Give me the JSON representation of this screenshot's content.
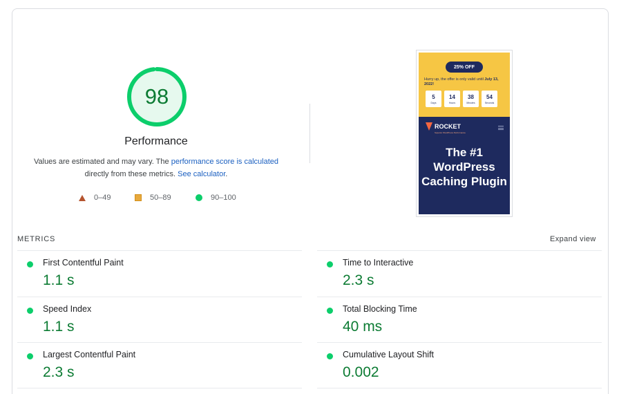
{
  "score": {
    "value": "98",
    "fraction": 0.98,
    "title": "Performance",
    "color": "#0cce6b"
  },
  "description": {
    "prefix": "Values are estimated and may vary. The ",
    "link1": "performance score is calculated",
    "middle": "directly from these metrics. ",
    "link2": "See calculator",
    "suffix": "."
  },
  "legend": [
    {
      "icon": "triangle-icon",
      "label": "0–49",
      "color": "#b5542e"
    },
    {
      "icon": "square-icon",
      "label": "50–89",
      "color": "#e8a93c"
    },
    {
      "icon": "circle-icon",
      "label": "90–100",
      "color": "#0cce6b"
    }
  ],
  "thumbnail": {
    "badge": "25% OFF",
    "offer_text": "Hurry up, the offer is only valid until ",
    "offer_date": "July 13, 2022!",
    "timer": [
      {
        "value": "5",
        "label": "Days"
      },
      {
        "value": "14",
        "label": "Hours"
      },
      {
        "value": "38",
        "label": "Minutes"
      },
      {
        "value": "54",
        "label": "Seconds"
      }
    ],
    "logo_text": "ROCKET",
    "logo_sub": "Superior WordPress Performance",
    "hero_title": "The #1 WordPress Caching Plugin"
  },
  "metrics": {
    "heading": "METRICS",
    "expand": "Expand view",
    "items": [
      {
        "name": "First Contentful Paint",
        "value": "1.1 s"
      },
      {
        "name": "Time to Interactive",
        "value": "2.3 s"
      },
      {
        "name": "Speed Index",
        "value": "1.1 s"
      },
      {
        "name": "Total Blocking Time",
        "value": "40 ms"
      },
      {
        "name": "Largest Contentful Paint",
        "value": "2.3 s"
      },
      {
        "name": "Cumulative Layout Shift",
        "value": "0.002"
      }
    ]
  }
}
